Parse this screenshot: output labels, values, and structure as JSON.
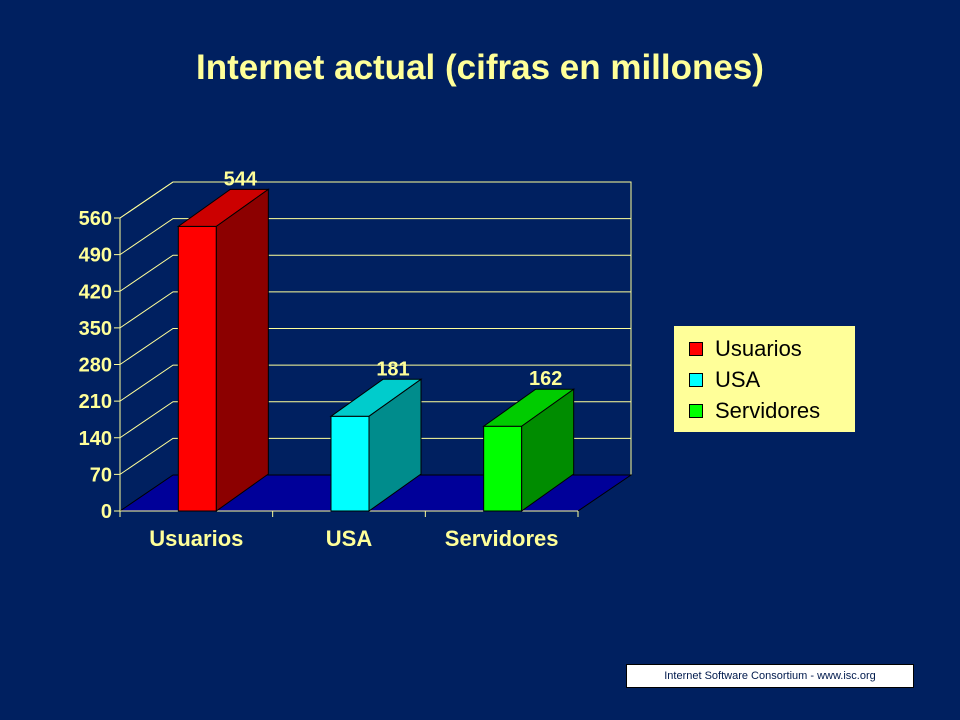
{
  "slide": {
    "title": "Internet actual (cifras en millones)",
    "footer": "Internet Software Consortium - www.isc.org"
  },
  "colors": {
    "background": "#002060",
    "title": "#ffff99",
    "floor": "#000099",
    "legend_bg": "#ffff99"
  },
  "chart_data": {
    "type": "bar",
    "title": "Internet actual (cifras en millones)",
    "categories": [
      "Usuarios",
      "USA",
      "Servidores"
    ],
    "values": [
      544,
      181,
      162
    ],
    "colors": [
      "#ff0000",
      "#00ffff",
      "#00ff00"
    ],
    "ylim": [
      0,
      560
    ],
    "yticks": [
      0,
      70,
      140,
      210,
      280,
      350,
      420,
      490,
      560
    ],
    "data_labels": [
      "544",
      "181",
      "162"
    ],
    "legend": {
      "entries": [
        "Usuarios",
        "USA",
        "Servidores"
      ],
      "position": "right"
    },
    "grid": true,
    "style": "3d"
  }
}
